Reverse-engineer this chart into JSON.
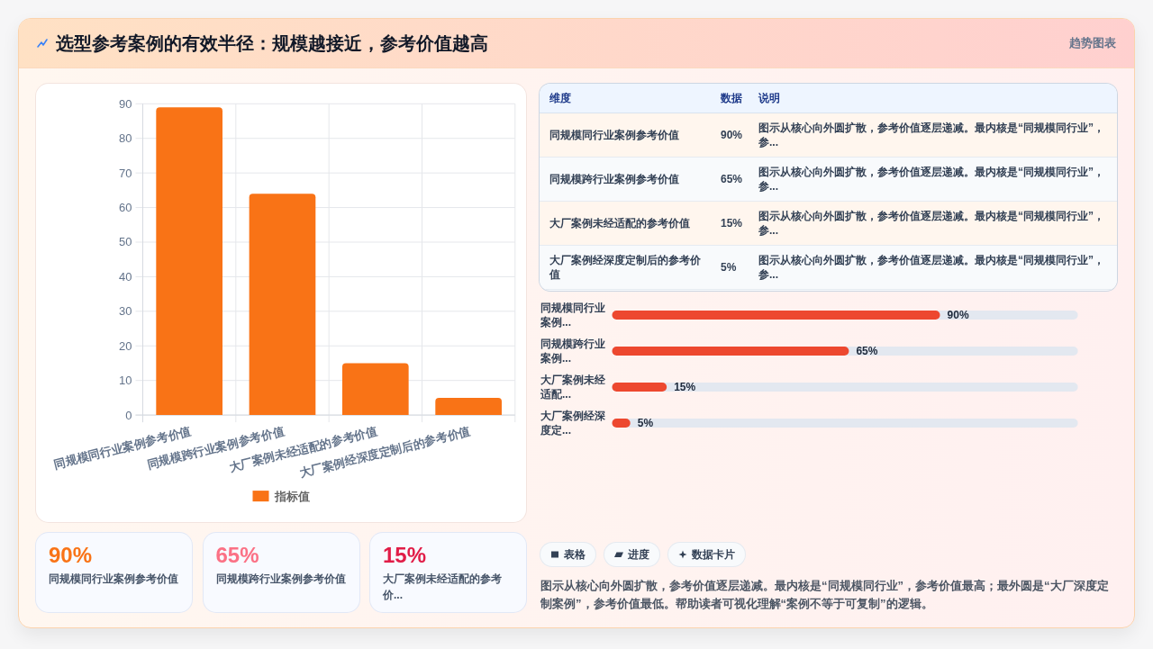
{
  "chart_data": [
    {
      "type": "other",
      "title": "选型参考案例的有效半径：规模越接近，参考价值越高",
      "subtitle": "趋势图表"
    },
    {
      "type": "bar",
      "categories": [
        "同规模同行业案例参考价值",
        "同规模跨行业案例参考价值",
        "大厂案例未经适配的参考价值",
        "大厂案例经深度定制后的参考价值"
      ],
      "series": [
        {
          "name": "指标值",
          "color": "#f97316",
          "values": [
            89,
            64,
            15,
            5
          ]
        }
      ],
      "ylim": [
        0,
        90
      ],
      "yticks": [
        0,
        10,
        20,
        30,
        40,
        50,
        60,
        70,
        80,
        90
      ],
      "grid": true,
      "legend": "bottom"
    },
    {
      "type": "other",
      "categories": [
        "同规模同行业案例参考价值",
        "同规模跨行业案例参考价值",
        "大厂案例未经适配的参考价值",
        "大厂案例经深度定制后的参考价值"
      ],
      "annotations": [
        "维度",
        "数据",
        "说明",
        "90%",
        "图示从核心向外圆扩散，参考价值逐层递减。最内核是“同规模同行业”，参...",
        "65%",
        "图示从核心向外圆扩散，参考价值逐层递减。最内核是“同规模同行业”，参...",
        "15%",
        "图示从核心向外圆扩散，参考价值逐层递减。最内核是“同规模同行业”，参...",
        "5%",
        "图示从核心向外圆扩散，参考价值逐层递减。最内核是“同规模同行业”，参..."
      ]
    },
    {
      "type": "bar",
      "orientation": "horizontal",
      "categories": [
        "同规模同行业案例...",
        "同规模跨行业案例...",
        "大厂案例未经适配...",
        "大厂案例经深度定..."
      ],
      "values": [
        90,
        65,
        15,
        5
      ],
      "value_labels": [
        "90%",
        "65%",
        "15%",
        "5%"
      ],
      "color": "#ed482f"
    },
    {
      "type": "other",
      "categories": [
        "同规模同行业案例参考价值",
        "同规模跨行业案例参考价值",
        "大厂案例未经适配的参考价..."
      ],
      "values": [
        90,
        65,
        15
      ],
      "value_labels": [
        "90%",
        "65%",
        "15%"
      ]
    },
    {
      "type": "other",
      "annotations": [
        "表格",
        "进度",
        "数据卡片",
        "图示从核心向外圆扩散，参考价值逐层递减。最内核是“同规模同行业”，参考价值最高；最外圆是“大厂深度定制案例”，参考价值最低。帮助读者可视化理解“案例不等于可复制”的逻辑。"
      ]
    }
  ]
}
